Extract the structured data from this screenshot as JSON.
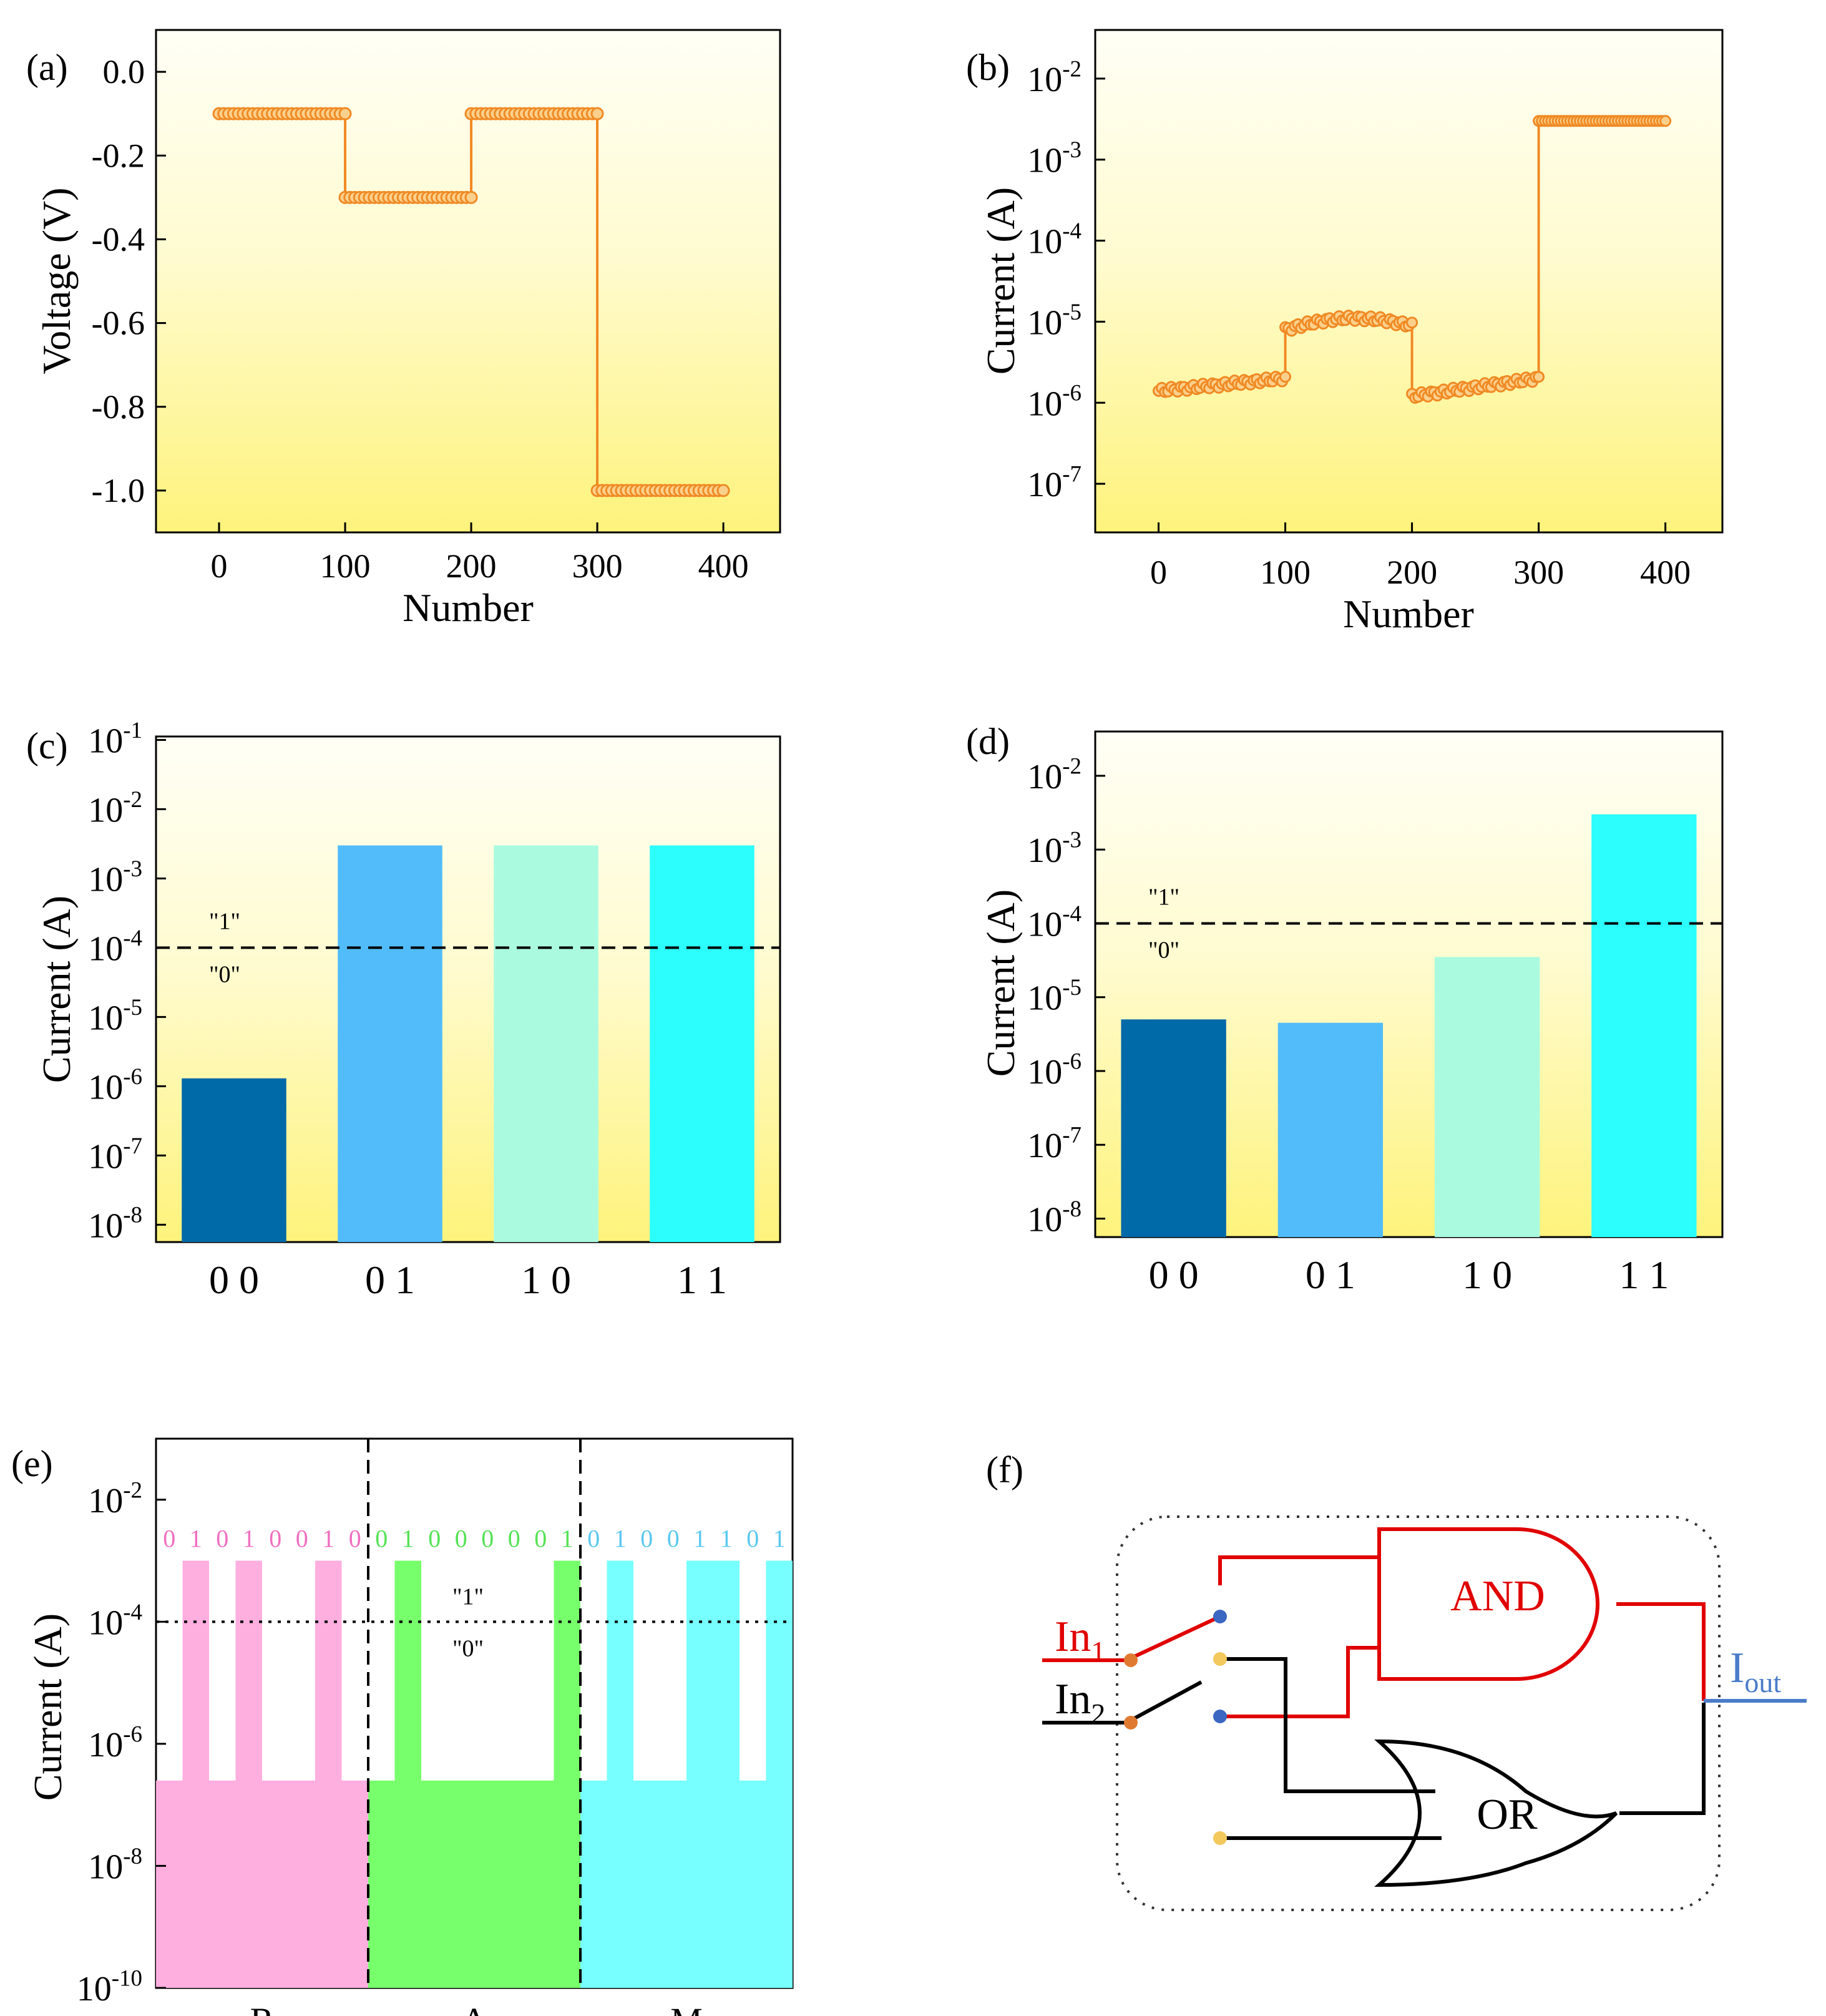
{
  "chart_data": [
    {
      "panel": "(a)",
      "type": "line",
      "xlabel": "Number",
      "ylabel": "Voltage (V)",
      "xlim": [
        -50,
        445
      ],
      "ylim": [
        -1.1,
        0.1
      ],
      "xticks": [
        0,
        100,
        200,
        300,
        400
      ],
      "yticks": [
        "0.0",
        "-0.2",
        "-0.4",
        "-0.6",
        "-0.8",
        "-1.0"
      ],
      "series": [
        {
          "name": "voltage",
          "color": "#f08a24",
          "segments": [
            {
              "x_start": 0,
              "x_end": 100,
              "value": -0.1
            },
            {
              "x_start": 100,
              "x_end": 200,
              "value": -0.3
            },
            {
              "x_start": 200,
              "x_end": 300,
              "value": -0.1
            },
            {
              "x_start": 300,
              "x_end": 400,
              "value": -1.0
            }
          ]
        }
      ]
    },
    {
      "panel": "(b)",
      "type": "line",
      "yscale": "log",
      "xlabel": "Number",
      "ylabel": "Current (A)",
      "xlim": [
        -50,
        445
      ],
      "ylim_exp": [
        -7.6,
        -1.4
      ],
      "xticks": [
        0,
        100,
        200,
        300,
        400
      ],
      "yticks": [
        {
          "base": "10",
          "exp": "-2"
        },
        {
          "base": "10",
          "exp": "-3"
        },
        {
          "base": "10",
          "exp": "-4"
        },
        {
          "base": "10",
          "exp": "-5"
        },
        {
          "base": "10",
          "exp": "-6"
        },
        {
          "base": "10",
          "exp": "-7"
        }
      ],
      "series": [
        {
          "name": "current",
          "color": "#f08a24",
          "segments": [
            {
              "x_start": 0,
              "x_end": 100,
              "value_start": 1.4e-06,
              "value_end": 2e-06
            },
            {
              "x_start": 100,
              "x_end": 200,
              "value_start": 8e-06,
              "value_end": 9e-06,
              "value_peak": 1.1e-05
            },
            {
              "x_start": 200,
              "x_end": 300,
              "value_start": 1.2e-06,
              "value_end": 2e-06
            },
            {
              "x_start": 300,
              "x_end": 400,
              "value_start": 0.003,
              "value_end": 0.003
            }
          ]
        }
      ]
    },
    {
      "panel": "(c)",
      "type": "bar",
      "yscale": "log",
      "ylabel": "Current (A)",
      "ylim_exp": [
        -8.25,
        -0.95
      ],
      "categories": [
        "0 0",
        "0 1",
        "1 0",
        "1 1"
      ],
      "values": [
        1.3e-06,
        0.003,
        0.003,
        0.003
      ],
      "colors": [
        "#0069a8",
        "#52bcfa",
        "#aafae0",
        "#2cfdfd"
      ],
      "yticks": [
        {
          "base": "10",
          "exp": "-1"
        },
        {
          "base": "10",
          "exp": "-2"
        },
        {
          "base": "10",
          "exp": "-3"
        },
        {
          "base": "10",
          "exp": "-4"
        },
        {
          "base": "10",
          "exp": "-5"
        },
        {
          "base": "10",
          "exp": "-6"
        },
        {
          "base": "10",
          "exp": "-7"
        },
        {
          "base": "10",
          "exp": "-8"
        }
      ],
      "threshold": 0.0001,
      "threshold_labels": [
        "\"1\"",
        "\"0\""
      ]
    },
    {
      "panel": "(d)",
      "type": "bar",
      "yscale": "log",
      "ylabel": "Current (A)",
      "ylim_exp": [
        -8.25,
        -1.4
      ],
      "categories": [
        "0 0",
        "0 1",
        "1 0",
        "1 1"
      ],
      "values": [
        5e-06,
        4.5e-06,
        3.5e-05,
        0.003
      ],
      "colors": [
        "#0069a8",
        "#52bcfa",
        "#aafae0",
        "#2cfdfd"
      ],
      "yticks": [
        {
          "base": "10",
          "exp": "-2"
        },
        {
          "base": "10",
          "exp": "-3"
        },
        {
          "base": "10",
          "exp": "-4"
        },
        {
          "base": "10",
          "exp": "-5"
        },
        {
          "base": "10",
          "exp": "-6"
        },
        {
          "base": "10",
          "exp": "-7"
        },
        {
          "base": "10",
          "exp": "-8"
        }
      ],
      "threshold": 0.0001,
      "threshold_labels": [
        "\"1\"",
        "\"0\""
      ]
    },
    {
      "panel": "(e)",
      "type": "bar",
      "yscale": "log",
      "ylabel": "Current (A)",
      "ylim_exp": [
        -10,
        -1
      ],
      "yticks": [
        {
          "base": "10",
          "exp": "-2"
        },
        {
          "base": "10",
          "exp": "-4"
        },
        {
          "base": "10",
          "exp": "-6"
        },
        {
          "base": "10",
          "exp": "-8"
        },
        {
          "base": "10",
          "exp": "-10"
        }
      ],
      "threshold": 0.0001,
      "threshold_labels": [
        "\"1\"",
        "\"0\""
      ],
      "groups": [
        {
          "letter": "R",
          "bits": "01010010",
          "color": "#ffaee0",
          "label_color": "#f06ec0"
        },
        {
          "letter": "A",
          "bits": "01000001",
          "color": "#77ff6c",
          "label_color": "#55e255"
        },
        {
          "letter": "M",
          "bits": "01001101",
          "color": "#77ffff",
          "label_color": "#5ac8f0"
        }
      ],
      "high_value": 0.001,
      "low_value": 2.5e-07
    }
  ],
  "panel_labels": [
    "(a)",
    "(b)",
    "(c)",
    "(d)",
    "(e)",
    "(f)"
  ],
  "diagram": {
    "inputs": [
      {
        "base": "In",
        "sub": "1",
        "color": "#e00000"
      },
      {
        "base": "In",
        "sub": "2",
        "color": "#000000"
      }
    ],
    "and_gate": "AND",
    "or_gate": "OR",
    "output": {
      "base": "I",
      "sub": "out",
      "color": "#4a7cc8"
    }
  }
}
